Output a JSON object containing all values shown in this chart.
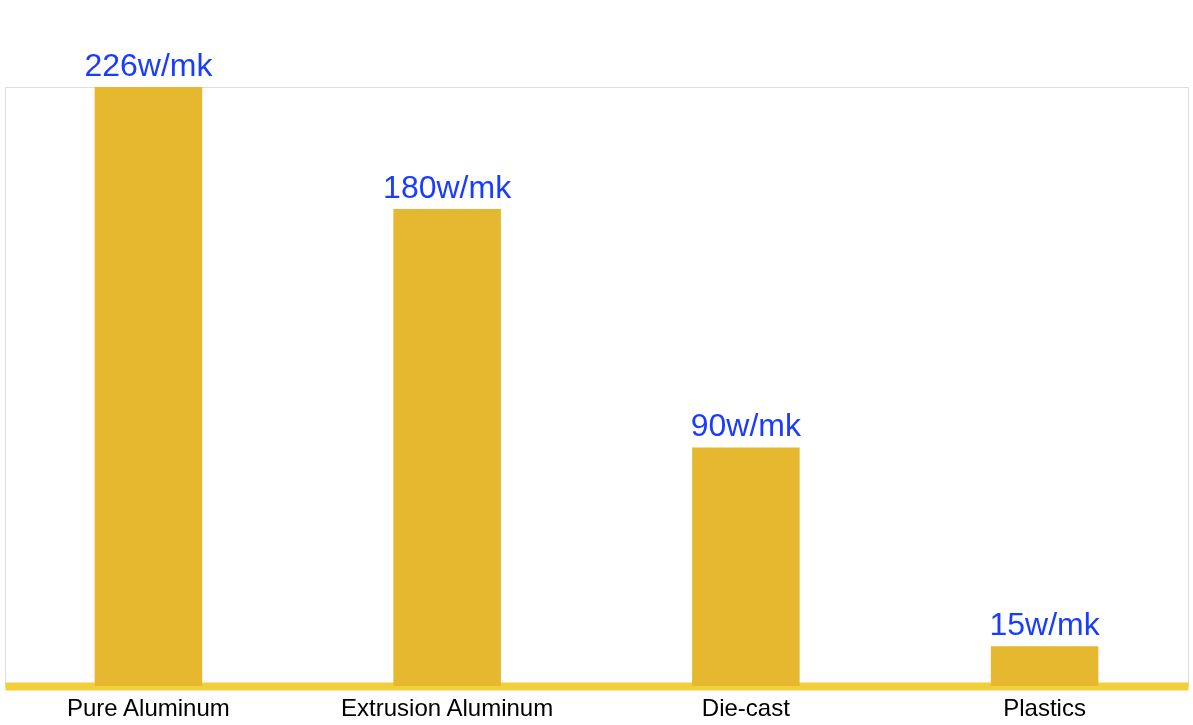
{
  "chart_data": {
    "type": "bar",
    "categories": [
      "Pure Aluminum",
      "Extrusion Aluminum",
      "Die-cast",
      "Plastics"
    ],
    "values": [
      226,
      180,
      90,
      15
    ],
    "value_labels": [
      "226w/mk",
      "180w/mk",
      "90w/mk",
      "15w/mk"
    ],
    "color": "#e6b830",
    "grid": false
  }
}
